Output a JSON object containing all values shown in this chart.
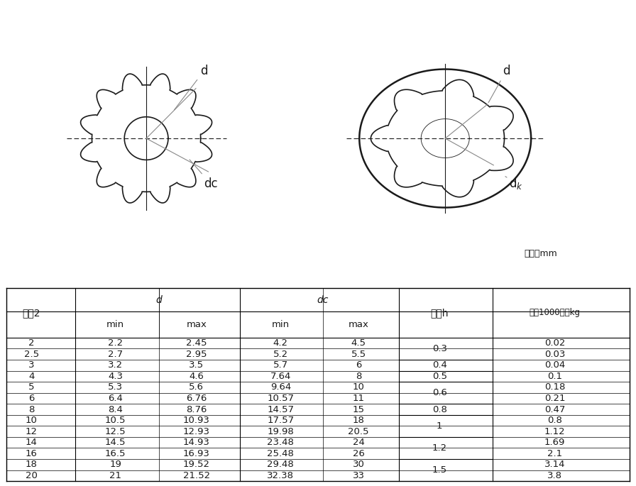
{
  "title": "",
  "unit_text": "单位：mm",
  "col_headers": [
    "规格2",
    "d",
    "",
    "dc",
    "",
    "厚度h",
    "每个1000件约kg"
  ],
  "sub_headers": [
    "",
    "min",
    "max",
    "min",
    "max",
    "",
    ""
  ],
  "rows": [
    [
      "2",
      "2.2",
      "2.45",
      "4.2",
      "4.5",
      "0.3",
      "0.02"
    ],
    [
      "2.5",
      "2.7",
      "2.95",
      "5.2",
      "5.5",
      "",
      "0.03"
    ],
    [
      "3",
      "3.2",
      "3.5",
      "5.7",
      "6",
      "0.4",
      "0.04"
    ],
    [
      "4",
      "4.3",
      "4.6",
      "7.64",
      "8",
      "0.5",
      "0.1"
    ],
    [
      "5",
      "5.3",
      "5.6",
      "9.64",
      "10",
      "0.6",
      "0.18"
    ],
    [
      "6",
      "6.4",
      "6.76",
      "10.57",
      "11",
      "",
      "0.21"
    ],
    [
      "8",
      "8.4",
      "8.76",
      "14.57",
      "15",
      "0.8",
      "0.47"
    ],
    [
      "10",
      "10.5",
      "10.93",
      "17.57",
      "18",
      "1",
      "0.8"
    ],
    [
      "12",
      "12.5",
      "12.93",
      "19.98",
      "20.5",
      "",
      "1.12"
    ],
    [
      "14",
      "14.5",
      "14.93",
      "23.48",
      "24",
      "1.2",
      "1.69"
    ],
    [
      "16",
      "16.5",
      "16.93",
      "25.48",
      "26",
      "",
      "2.1"
    ],
    [
      "18",
      "19",
      "19.52",
      "29.48",
      "30",
      "1.5",
      "3.14"
    ],
    [
      "20",
      "21",
      "21.52",
      "32.38",
      "33",
      "",
      "3.8"
    ]
  ],
  "bg_color": "#ffffff",
  "line_color": "#000000",
  "drawing_color": "#1a1a1a"
}
